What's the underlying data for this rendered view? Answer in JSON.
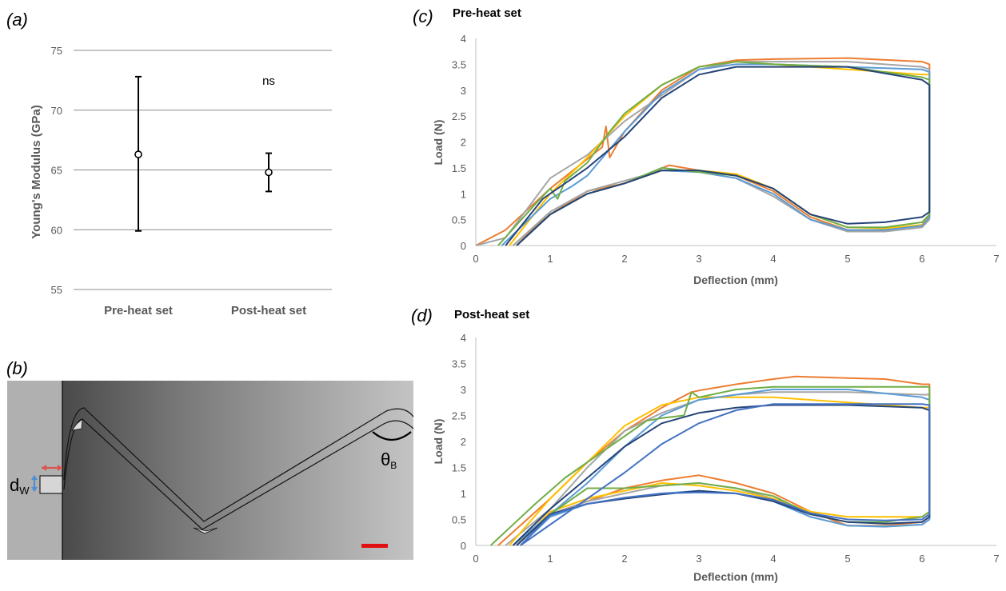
{
  "panels": {
    "a": {
      "label": "(a)"
    },
    "b": {
      "label": "(b)",
      "dw": "d",
      "dw_sub": "W",
      "theta": "θ",
      "theta_sub": "B"
    },
    "c": {
      "label": "(c)"
    },
    "d": {
      "label": "(d)"
    }
  },
  "colors": {
    "grid": "#8c8c8c",
    "axis_text": "#595959",
    "series": [
      "#ed7d31",
      "#a5a5a5",
      "#ffc000",
      "#5b9bd5",
      "#70ad47",
      "#264478",
      "#4472c4"
    ]
  },
  "chart_data": [
    {
      "id": "a",
      "type": "scatter",
      "title": "",
      "xlabel": "",
      "ylabel": "Young's Modulus (GPa)",
      "categories": [
        "Pre-heat set",
        "Post-heat set"
      ],
      "ylim": [
        55,
        75
      ],
      "yticks": [
        55,
        60,
        65,
        70,
        75
      ],
      "grid": true,
      "values": [
        66.3,
        64.8
      ],
      "error_low": [
        59.9,
        63.2
      ],
      "error_high": [
        72.8,
        66.4
      ],
      "annotation": "ns"
    },
    {
      "id": "c",
      "type": "line",
      "title": "Pre-heat set",
      "xlabel": "Deflection (mm)",
      "ylabel": "Load (N)",
      "xlim": [
        0,
        7
      ],
      "ylim": [
        0,
        4
      ],
      "xticks": [
        0,
        1,
        2,
        3,
        4,
        5,
        6,
        7
      ],
      "yticks": [
        "0",
        "0.5",
        "1",
        "1.5",
        "2",
        "2.5",
        "3",
        "3.5",
        "4"
      ],
      "grid": false,
      "series": [
        {
          "x": [
            0,
            0.4,
            1.0,
            1.7,
            1.75,
            1.8,
            2.0,
            2.5,
            3.0,
            3.5,
            4.0,
            5.0,
            6.0,
            6.1,
            6.1,
            6.0,
            5.5,
            5.0,
            4.5,
            4.0,
            3.5,
            3.0,
            2.6,
            2.0,
            1.5,
            1.0,
            0.5
          ],
          "y": [
            0,
            0.3,
            1.1,
            1.9,
            2.3,
            1.7,
            2.2,
            3.0,
            3.45,
            3.58,
            3.6,
            3.62,
            3.55,
            3.5,
            0.6,
            0.4,
            0.3,
            0.3,
            0.55,
            1.05,
            1.35,
            1.45,
            1.55,
            1.2,
            1.05,
            0.6,
            0
          ]
        },
        {
          "x": [
            0,
            0.4,
            1.0,
            1.5,
            2.0,
            2.5,
            3.0,
            3.5,
            4.0,
            5.0,
            6.0,
            6.1,
            6.1,
            6.0,
            5.5,
            5.0,
            4.5,
            4.0,
            3.5,
            3.0,
            2.5,
            2.0,
            1.5,
            1.0,
            0.5
          ],
          "y": [
            0,
            0.15,
            1.3,
            1.75,
            2.4,
            2.9,
            3.4,
            3.55,
            3.55,
            3.55,
            3.45,
            3.4,
            0.5,
            0.35,
            0.27,
            0.27,
            0.5,
            0.95,
            1.3,
            1.42,
            1.45,
            1.25,
            1.05,
            0.65,
            0
          ]
        },
        {
          "x": [
            0.45,
            1.0,
            1.5,
            2.0,
            2.5,
            3.0,
            3.5,
            4.0,
            5.0,
            6.0,
            6.1,
            6.1,
            6.0,
            5.5,
            5.0,
            4.5,
            4.0,
            3.5,
            3.0,
            2.5,
            2.0,
            1.5,
            1.0,
            0.55
          ],
          "y": [
            0,
            1.0,
            1.7,
            2.5,
            3.1,
            3.45,
            3.55,
            3.5,
            3.4,
            3.3,
            3.3,
            0.55,
            0.4,
            0.33,
            0.35,
            0.6,
            1.1,
            1.38,
            1.45,
            1.45,
            1.2,
            1.0,
            0.6,
            0
          ]
        },
        {
          "x": [
            0.35,
            1.0,
            1.3,
            1.5,
            2.0,
            2.5,
            3.0,
            3.5,
            4.0,
            5.0,
            6.0,
            6.1,
            6.1,
            6.0,
            5.5,
            5.0,
            4.5,
            4.0,
            3.5,
            3.0,
            2.5,
            2.0,
            1.5,
            1.0,
            0.55
          ],
          "y": [
            0,
            0.9,
            1.15,
            1.35,
            2.2,
            2.95,
            3.4,
            3.5,
            3.5,
            3.45,
            3.4,
            3.35,
            0.55,
            0.38,
            0.3,
            0.3,
            0.5,
            1.0,
            1.3,
            1.42,
            1.45,
            1.2,
            1.0,
            0.6,
            0
          ]
        },
        {
          "x": [
            0.3,
            0.8,
            1.0,
            1.1,
            1.2,
            1.5,
            1.8,
            2.0,
            2.5,
            3.0,
            3.5,
            4.0,
            5.0,
            6.0,
            6.1,
            6.1,
            6.0,
            5.5,
            5.0,
            4.5,
            4.0,
            3.5,
            3.0,
            2.5,
            2.0,
            1.5,
            1.0,
            0.55
          ],
          "y": [
            0,
            0.8,
            1.1,
            0.9,
            1.25,
            1.6,
            2.2,
            2.55,
            3.1,
            3.45,
            3.55,
            3.5,
            3.45,
            3.25,
            3.2,
            0.6,
            0.45,
            0.35,
            0.35,
            0.6,
            1.1,
            1.35,
            1.42,
            1.5,
            1.2,
            1.0,
            0.6,
            0
          ]
        },
        {
          "x": [
            0.4,
            0.9,
            1.2,
            1.5,
            2.0,
            2.5,
            3.0,
            3.5,
            4.0,
            5.0,
            6.0,
            6.1,
            6.1,
            6.0,
            5.5,
            5.0,
            4.5,
            4.0,
            3.5,
            3.0,
            2.5,
            2.0,
            1.5,
            1.0,
            0.55
          ],
          "y": [
            0,
            0.9,
            1.2,
            1.5,
            2.1,
            2.85,
            3.3,
            3.45,
            3.45,
            3.45,
            3.2,
            3.1,
            0.65,
            0.55,
            0.45,
            0.42,
            0.6,
            1.1,
            1.35,
            1.45,
            1.45,
            1.2,
            1.0,
            0.6,
            0
          ]
        }
      ]
    },
    {
      "id": "d",
      "type": "line",
      "title": "Post-heat set",
      "xlabel": "Deflection (mm)",
      "ylabel": "Load (N)",
      "xlim": [
        0,
        7
      ],
      "ylim": [
        0,
        4
      ],
      "xticks": [
        0,
        1,
        2,
        3,
        4,
        5,
        6,
        7
      ],
      "yticks": [
        "0",
        "0.5",
        "1",
        "1.5",
        "2",
        "2.5",
        "3",
        "3.5",
        "4"
      ],
      "grid": false,
      "series": [
        {
          "x": [
            0.3,
            1.0,
            1.5,
            2.0,
            2.5,
            2.9,
            3.0,
            3.5,
            4.0,
            4.3,
            5.0,
            5.5,
            6.0,
            6.1,
            6.1,
            6.0,
            5.5,
            5.0,
            4.5,
            4.0,
            3.5,
            3.0,
            2.5,
            2.0,
            1.5,
            1.0,
            0.5
          ],
          "y": [
            0,
            0.9,
            1.6,
            2.2,
            2.65,
            2.95,
            2.98,
            3.1,
            3.2,
            3.25,
            3.22,
            3.2,
            3.1,
            3.1,
            0.55,
            0.45,
            0.38,
            0.38,
            0.65,
            1.0,
            1.2,
            1.35,
            1.25,
            1.1,
            0.85,
            0.6,
            0
          ]
        },
        {
          "x": [
            0.4,
            1.0,
            1.5,
            2.0,
            2.5,
            3.0,
            3.5,
            4.0,
            5.0,
            6.0,
            6.1,
            6.1,
            6.0,
            5.5,
            5.0,
            4.5,
            4.0,
            3.5,
            3.0,
            2.5,
            2.0,
            1.5,
            1.0,
            0.55
          ],
          "y": [
            0,
            0.7,
            1.5,
            2.2,
            2.55,
            2.8,
            2.9,
            2.95,
            2.95,
            2.9,
            2.9,
            0.5,
            0.4,
            0.37,
            0.38,
            0.55,
            0.9,
            1.1,
            1.2,
            1.15,
            1.0,
            0.85,
            0.6,
            0
          ]
        },
        {
          "x": [
            0.45,
            1.0,
            1.5,
            2.0,
            2.5,
            3.0,
            3.5,
            4.0,
            5.0,
            6.0,
            6.1,
            6.1,
            6.0,
            5.5,
            5.0,
            4.5,
            4.0,
            3.5,
            3.0,
            2.5,
            2.0,
            1.5,
            1.0,
            0.55
          ],
          "y": [
            0,
            0.9,
            1.6,
            2.3,
            2.7,
            2.85,
            2.85,
            2.85,
            2.75,
            2.65,
            2.65,
            0.65,
            0.55,
            0.55,
            0.55,
            0.65,
            0.9,
            1.05,
            1.15,
            1.2,
            1.05,
            0.9,
            0.65,
            0
          ]
        },
        {
          "x": [
            0.5,
            1.0,
            1.5,
            2.0,
            2.5,
            3.0,
            3.5,
            4.0,
            5.0,
            6.0,
            6.1,
            6.1,
            6.0,
            5.5,
            5.0,
            4.5,
            4.0,
            3.5,
            3.0,
            2.5,
            2.0,
            1.5,
            1.0,
            0.6
          ],
          "y": [
            0,
            0.6,
            1.2,
            1.9,
            2.5,
            2.8,
            2.9,
            3.0,
            3.0,
            2.85,
            2.8,
            0.5,
            0.4,
            0.36,
            0.38,
            0.55,
            0.85,
            1.0,
            1.05,
            1.0,
            0.9,
            0.8,
            0.55,
            0
          ]
        },
        {
          "x": [
            0.2,
            0.8,
            1.2,
            1.5,
            2.0,
            2.3,
            2.5,
            2.8,
            2.9,
            3.0,
            3.5,
            4.0,
            5.0,
            6.0,
            6.1,
            6.1,
            6.0,
            5.5,
            5.0,
            4.5,
            4.0,
            3.5,
            3.0,
            2.5,
            2.0,
            1.5,
            1.0,
            0.55
          ],
          "y": [
            0,
            0.8,
            1.3,
            1.6,
            2.1,
            2.4,
            2.45,
            2.5,
            2.95,
            2.85,
            3.0,
            3.05,
            3.05,
            3.05,
            3.05,
            0.65,
            0.55,
            0.45,
            0.45,
            0.6,
            0.95,
            1.1,
            1.2,
            1.15,
            1.1,
            1.1,
            0.6,
            0
          ]
        },
        {
          "x": [
            0.5,
            1.0,
            1.5,
            2.0,
            2.5,
            3.0,
            3.5,
            4.0,
            5.0,
            6.0,
            6.1,
            6.1,
            6.0,
            5.5,
            5.0,
            4.5,
            4.0,
            3.5,
            3.0,
            2.5,
            2.0,
            1.5,
            1.0,
            0.55
          ],
          "y": [
            0,
            0.7,
            1.3,
            1.9,
            2.35,
            2.55,
            2.65,
            2.7,
            2.7,
            2.65,
            2.6,
            0.55,
            0.45,
            0.42,
            0.45,
            0.6,
            0.85,
            1.0,
            1.05,
            0.98,
            0.9,
            0.8,
            0.6,
            0
          ]
        },
        {
          "x": [
            0.6,
            1.0,
            1.5,
            2.0,
            2.5,
            3.0,
            3.5,
            4.0,
            5.0,
            6.0,
            6.1,
            6.1,
            6.0,
            5.5,
            5.0,
            4.5,
            4.0,
            3.5,
            3.0,
            2.5,
            2.0,
            1.5,
            1.0,
            0.6
          ],
          "y": [
            0,
            0.4,
            0.9,
            1.4,
            1.95,
            2.35,
            2.6,
            2.72,
            2.72,
            2.72,
            2.7,
            0.6,
            0.5,
            0.48,
            0.5,
            0.62,
            0.88,
            1.0,
            1.02,
            1.0,
            0.92,
            0.8,
            0.58,
            0
          ]
        }
      ]
    }
  ]
}
